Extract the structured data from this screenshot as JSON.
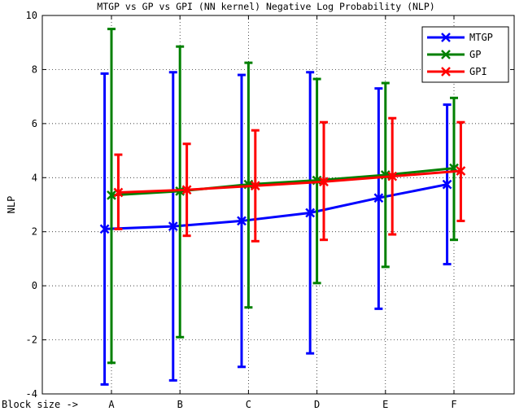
{
  "chart_data": {
    "type": "line",
    "title": "MTGP vs GP vs GPI (NN kernel) Negative Log Probability (NLP)",
    "xlabel": "Block size ->",
    "ylabel": "NLP",
    "categories": [
      "A",
      "B",
      "C",
      "D",
      "E",
      "F"
    ],
    "ylim": [
      -4,
      10
    ],
    "yticks": [
      -4,
      -2,
      0,
      2,
      4,
      6,
      8,
      10
    ],
    "grid": true,
    "legend_position": "top-right",
    "series": [
      {
        "name": "MTGP",
        "color": "#0000ff",
        "offset": -0.1,
        "values": [
          2.1,
          2.2,
          2.4,
          2.7,
          3.25,
          3.75
        ],
        "lower": [
          -3.65,
          -3.5,
          -3.0,
          -2.5,
          -0.85,
          0.8
        ],
        "upper": [
          7.85,
          7.9,
          7.8,
          7.9,
          7.3,
          6.7
        ]
      },
      {
        "name": "GP",
        "color": "#008000",
        "offset": 0.0,
        "values": [
          3.35,
          3.5,
          3.75,
          3.9,
          4.1,
          4.35
        ],
        "lower": [
          -2.85,
          -1.9,
          -0.8,
          0.1,
          0.7,
          1.7
        ],
        "upper": [
          9.5,
          8.85,
          8.25,
          7.65,
          7.5,
          6.95
        ]
      },
      {
        "name": "GPI",
        "color": "#ff0000",
        "offset": 0.1,
        "values": [
          3.45,
          3.55,
          3.7,
          3.85,
          4.05,
          4.25
        ],
        "lower": [
          2.1,
          1.85,
          1.65,
          1.7,
          1.9,
          2.4
        ],
        "upper": [
          4.85,
          5.25,
          5.75,
          6.05,
          6.2,
          6.05
        ]
      }
    ]
  }
}
